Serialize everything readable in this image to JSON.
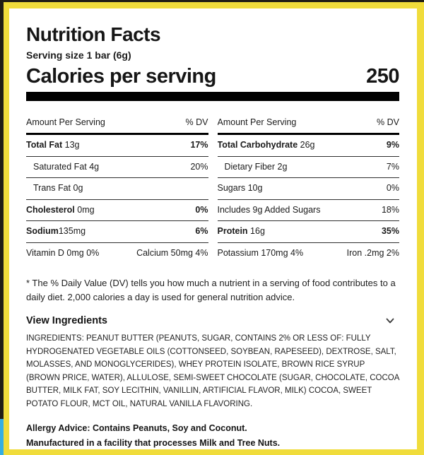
{
  "colors": {
    "frame_yellow": "#F0DC3B",
    "frame_blue": "#35AEE2",
    "frame_black": "#201D15",
    "bar_black": "#000000"
  },
  "header": {
    "title": "Nutrition Facts",
    "serving_size": "Serving size 1 bar (6g)",
    "calories_label": "Calories per serving",
    "calories_value": "250"
  },
  "table": {
    "amount_header": "Amount Per Serving",
    "dv_header": "% DV",
    "columns": [
      {
        "rows": [
          {
            "type": "nutrient",
            "bold": "Total Fat",
            "rest": " 13g",
            "value": "17%",
            "value_bold": true,
            "indent": false
          },
          {
            "type": "nutrient",
            "bold": "",
            "rest": "Saturated Fat 4g",
            "value": "20%",
            "value_bold": false,
            "indent": true
          },
          {
            "type": "nutrient",
            "bold": "",
            "rest": "Trans Fat 0g",
            "value": "",
            "value_bold": false,
            "indent": true
          },
          {
            "type": "nutrient",
            "bold": "Cholesterol",
            "rest": " 0mg",
            "value": "0%",
            "value_bold": true,
            "indent": false
          },
          {
            "type": "nutrient",
            "bold": "Sodium",
            "rest": "135mg",
            "value": "6%",
            "value_bold": true,
            "indent": false
          },
          {
            "type": "dual",
            "left": "Vitamin D 0mg 0%",
            "right": "Calcium 50mg 4%"
          }
        ]
      },
      {
        "rows": [
          {
            "type": "nutrient",
            "bold": "Total Carbohydrate",
            "rest": " 26g",
            "value": "9%",
            "value_bold": true,
            "indent": false
          },
          {
            "type": "nutrient",
            "bold": "",
            "rest": "Dietary Fiber 2g",
            "value": "7%",
            "value_bold": false,
            "indent": true
          },
          {
            "type": "nutrient",
            "bold": "",
            "rest": "Sugars 10g",
            "value": "0%",
            "value_bold": false,
            "indent": false
          },
          {
            "type": "nutrient",
            "bold": "",
            "rest": "Includes 9g Added Sugars",
            "value": "18%",
            "value_bold": false,
            "indent": false
          },
          {
            "type": "nutrient",
            "bold": "Protein",
            "rest": " 16g",
            "value": "35%",
            "value_bold": true,
            "indent": false
          },
          {
            "type": "dual",
            "left": "Potassium 170mg 4%",
            "right": "Iron .2mg 2%"
          }
        ]
      }
    ]
  },
  "footnote": "* The % Daily Value (DV) tells you how much a nutrient in a serving of food contributes to a daily diet. 2,000 calories a day is used for general nutrition advice.",
  "ingredients_section": {
    "toggle_label": "View Ingredients",
    "icon": "chevron-down",
    "text": "INGREDIENTS: PEANUT BUTTER (PEANUTS, SUGAR, CONTAINS 2% OR LESS OF: FULLY HYDROGENATED VEGETABLE OILS (COTTONSEED, SOYBEAN, RAPESEED), DEXTROSE, SALT, MOLASSES, AND MONOGLYCERIDES), WHEY PROTEIN ISOLATE, BROWN RICE SYRUP (BROWN PRICE, WATER), ALLULOSE, SEMI-SWEET CHOCOLATE (SUGAR, CHOCOLATE, COCOA BUTTER, MILK FAT, SOY LECITHIN, VANILLIN, ARTIFICIAL FLAVOR, MILK) COCOA, SWEET POTATO FLOUR, MCT OIL, NATURAL VANILLA FLAVORING."
  },
  "allergy": {
    "line1": "Allergy Advice: Contains Peanuts, Soy and Coconut.",
    "line2": "Manufactured in a facility that processes Milk and Tree Nuts."
  }
}
